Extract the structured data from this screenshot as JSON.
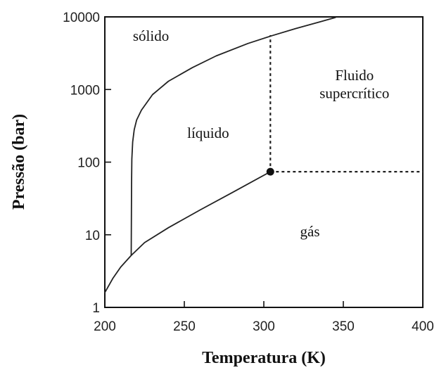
{
  "chart_data": {
    "type": "line",
    "xlabel": "Temperatura (K)",
    "ylabel": "Pressão (bar)",
    "xlim": [
      200,
      400
    ],
    "ylim": [
      1,
      10000
    ],
    "y_scale": "log",
    "x_ticks": [
      "200",
      "250",
      "300",
      "350",
      "400"
    ],
    "y_ticks": [
      "1",
      "10",
      "100",
      "1000",
      "10000"
    ],
    "grid": false,
    "series": [
      {
        "style": "solid",
        "x": [
          200,
          205,
          210,
          216.6,
          225,
          240,
          260,
          280,
          304.1
        ],
        "y": [
          1.6,
          2.5,
          3.6,
          5.2,
          7.8,
          12.5,
          22,
          38,
          73.8
        ]
      },
      {
        "style": "solid",
        "x": [
          216.6,
          216.8,
          217,
          217.5,
          218.5,
          220,
          223,
          230,
          240,
          255,
          270,
          290,
          305,
          320,
          335,
          345
        ],
        "y": [
          5.2,
          50,
          110,
          190,
          280,
          380,
          520,
          850,
          1300,
          2000,
          2900,
          4300,
          5500,
          6900,
          8500,
          9800
        ]
      },
      {
        "style": "dotted",
        "x": [
          304.1,
          304.1
        ],
        "y": [
          73.8,
          5600
        ]
      },
      {
        "style": "dotted",
        "x": [
          304.1,
          400
        ],
        "y": [
          73.8,
          73.8
        ]
      }
    ],
    "points": [
      {
        "x": 304.1,
        "y": 73.8
      }
    ],
    "annotations": [
      {
        "text": "sólido",
        "x": 229,
        "y": 4700
      },
      {
        "text": "líquido",
        "x": 265,
        "y": 215
      },
      {
        "text": "Fluido",
        "x": 357,
        "y": 1350
      },
      {
        "text": "supercrítico",
        "x": 357,
        "y": 760
      },
      {
        "text": "gás",
        "x": 329,
        "y": 9.5
      }
    ]
  }
}
